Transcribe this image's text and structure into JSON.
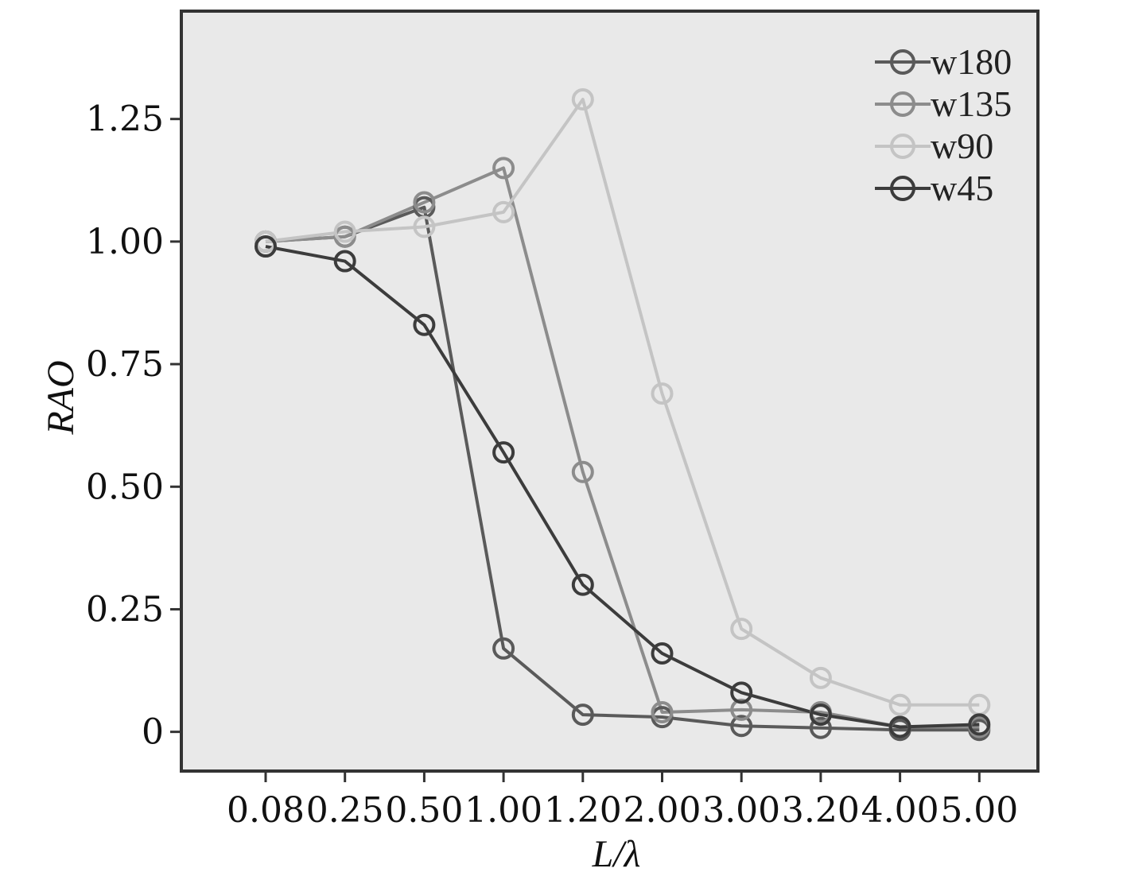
{
  "chart_data": {
    "type": "line",
    "title": "",
    "xlabel": "L/λ",
    "ylabel": "RAO",
    "categories": [
      "0.08",
      "0.25",
      "0.50",
      "1.00",
      "1.20",
      "2.00",
      "3.00",
      "3.20",
      "4.00",
      "5.00"
    ],
    "yticks": [
      "0",
      "0.25",
      "0.50",
      "0.75",
      "1.00",
      "1.25"
    ],
    "ylim": [
      -0.08,
      1.47
    ],
    "grid": false,
    "legend_position": "top-right",
    "series": [
      {
        "name": "w180",
        "color": "#5a5a5a",
        "values": [
          1.0,
          1.01,
          1.07,
          0.17,
          0.035,
          0.03,
          0.012,
          0.008,
          0.004,
          0.004
        ]
      },
      {
        "name": "w135",
        "color": "#8c8c8c",
        "values": [
          1.0,
          1.01,
          1.08,
          1.15,
          0.53,
          0.04,
          0.045,
          0.04,
          0.01,
          0.01
        ]
      },
      {
        "name": "w90",
        "color": "#c4c4c4",
        "values": [
          1.0,
          1.02,
          1.03,
          1.06,
          1.29,
          0.69,
          0.21,
          0.11,
          0.055,
          0.055
        ]
      },
      {
        "name": "w45",
        "color": "#3c3c3c",
        "values": [
          0.99,
          0.96,
          0.83,
          0.57,
          0.3,
          0.16,
          0.08,
          0.035,
          0.01,
          0.015
        ]
      }
    ]
  }
}
